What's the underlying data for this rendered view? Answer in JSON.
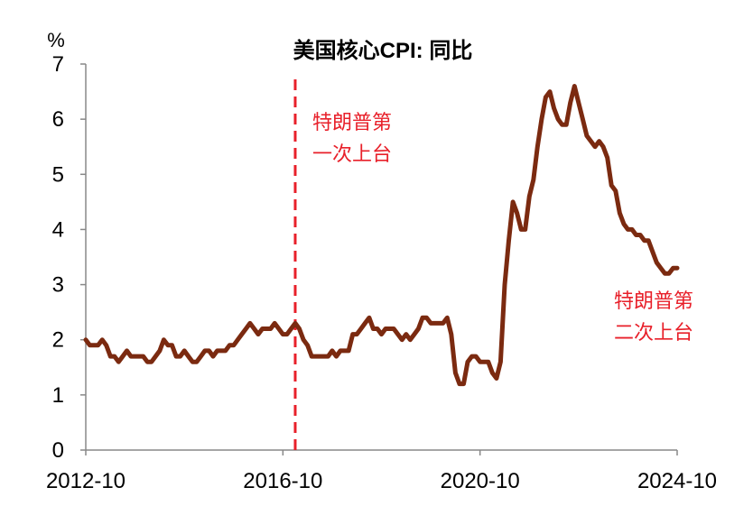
{
  "chart_data": {
    "type": "line",
    "title": "美国核心CPI: 同比",
    "ylabel": "%",
    "xlabel": "",
    "ylim": [
      0,
      7
    ],
    "yticks": [
      0,
      1,
      2,
      3,
      4,
      5,
      6,
      7
    ],
    "xlim": [
      "2012-10",
      "2024-10"
    ],
    "xticks": [
      "2012-10",
      "2016-10",
      "2020-10",
      "2024-10"
    ],
    "grid": false,
    "legend": "none",
    "series": [
      {
        "color": "#7B2A10",
        "x": [
          "2012-10",
          "2012-11",
          "2012-12",
          "2013-01",
          "2013-02",
          "2013-03",
          "2013-04",
          "2013-05",
          "2013-06",
          "2013-07",
          "2013-08",
          "2013-09",
          "2013-10",
          "2013-11",
          "2013-12",
          "2014-01",
          "2014-02",
          "2014-03",
          "2014-04",
          "2014-05",
          "2014-06",
          "2014-07",
          "2014-08",
          "2014-09",
          "2014-10",
          "2014-11",
          "2014-12",
          "2015-01",
          "2015-02",
          "2015-03",
          "2015-04",
          "2015-05",
          "2015-06",
          "2015-07",
          "2015-08",
          "2015-09",
          "2015-10",
          "2015-11",
          "2015-12",
          "2016-01",
          "2016-02",
          "2016-03",
          "2016-04",
          "2016-05",
          "2016-06",
          "2016-07",
          "2016-08",
          "2016-09",
          "2016-10",
          "2016-11",
          "2016-12",
          "2017-01",
          "2017-02",
          "2017-03",
          "2017-04",
          "2017-05",
          "2017-06",
          "2017-07",
          "2017-08",
          "2017-09",
          "2017-10",
          "2017-11",
          "2017-12",
          "2018-01",
          "2018-02",
          "2018-03",
          "2018-04",
          "2018-05",
          "2018-06",
          "2018-07",
          "2018-08",
          "2018-09",
          "2018-10",
          "2018-11",
          "2018-12",
          "2019-01",
          "2019-02",
          "2019-03",
          "2019-04",
          "2019-05",
          "2019-06",
          "2019-07",
          "2019-08",
          "2019-09",
          "2019-10",
          "2019-11",
          "2019-12",
          "2020-01",
          "2020-02",
          "2020-03",
          "2020-04",
          "2020-05",
          "2020-06",
          "2020-07",
          "2020-08",
          "2020-09",
          "2020-10",
          "2020-11",
          "2020-12",
          "2021-01",
          "2021-02",
          "2021-03",
          "2021-04",
          "2021-05",
          "2021-06",
          "2021-07",
          "2021-08",
          "2021-09",
          "2021-10",
          "2021-11",
          "2021-12",
          "2022-01",
          "2022-02",
          "2022-03",
          "2022-04",
          "2022-05",
          "2022-06",
          "2022-07",
          "2022-08",
          "2022-09",
          "2022-10",
          "2022-11",
          "2022-12",
          "2023-01",
          "2023-02",
          "2023-03",
          "2023-04",
          "2023-05",
          "2023-06",
          "2023-07",
          "2023-08",
          "2023-09",
          "2023-10",
          "2023-11",
          "2023-12",
          "2024-01",
          "2024-02",
          "2024-03",
          "2024-04",
          "2024-05",
          "2024-06",
          "2024-07",
          "2024-08",
          "2024-09",
          "2024-10"
        ],
        "y": [
          2.0,
          1.9,
          1.9,
          1.9,
          2.0,
          1.9,
          1.7,
          1.7,
          1.6,
          1.7,
          1.8,
          1.7,
          1.7,
          1.7,
          1.7,
          1.6,
          1.6,
          1.7,
          1.8,
          2.0,
          1.9,
          1.9,
          1.7,
          1.7,
          1.8,
          1.7,
          1.6,
          1.6,
          1.7,
          1.8,
          1.8,
          1.7,
          1.8,
          1.8,
          1.8,
          1.9,
          1.9,
          2.0,
          2.1,
          2.2,
          2.3,
          2.2,
          2.1,
          2.2,
          2.2,
          2.2,
          2.3,
          2.2,
          2.1,
          2.1,
          2.2,
          2.3,
          2.2,
          2.0,
          1.9,
          1.7,
          1.7,
          1.7,
          1.7,
          1.7,
          1.8,
          1.7,
          1.8,
          1.8,
          1.8,
          2.1,
          2.1,
          2.2,
          2.3,
          2.4,
          2.2,
          2.2,
          2.1,
          2.2,
          2.2,
          2.2,
          2.1,
          2.0,
          2.1,
          2.0,
          2.1,
          2.2,
          2.4,
          2.4,
          2.3,
          2.3,
          2.3,
          2.3,
          2.4,
          2.1,
          1.4,
          1.2,
          1.2,
          1.6,
          1.7,
          1.7,
          1.6,
          1.6,
          1.6,
          1.4,
          1.3,
          1.6,
          3.0,
          3.8,
          4.5,
          4.3,
          4.0,
          4.0,
          4.6,
          4.9,
          5.5,
          6.0,
          6.4,
          6.5,
          6.2,
          6.0,
          5.9,
          5.9,
          6.3,
          6.6,
          6.3,
          6.0,
          5.7,
          5.6,
          5.5,
          5.6,
          5.5,
          5.3,
          4.8,
          4.7,
          4.3,
          4.1,
          4.0,
          4.0,
          3.9,
          3.9,
          3.8,
          3.8,
          3.6,
          3.4,
          3.3,
          3.2,
          3.2,
          3.3,
          3.3
        ]
      }
    ],
    "markers": [
      {
        "x": "2017-01",
        "style": "dashed",
        "color": "#E8202A"
      }
    ],
    "annotations": [
      {
        "lines": [
          "特朗普第",
          "一次上台"
        ],
        "color": "#E8202A"
      },
      {
        "lines": [
          "特朗普第",
          "二次上台"
        ],
        "color": "#E8202A"
      }
    ]
  }
}
